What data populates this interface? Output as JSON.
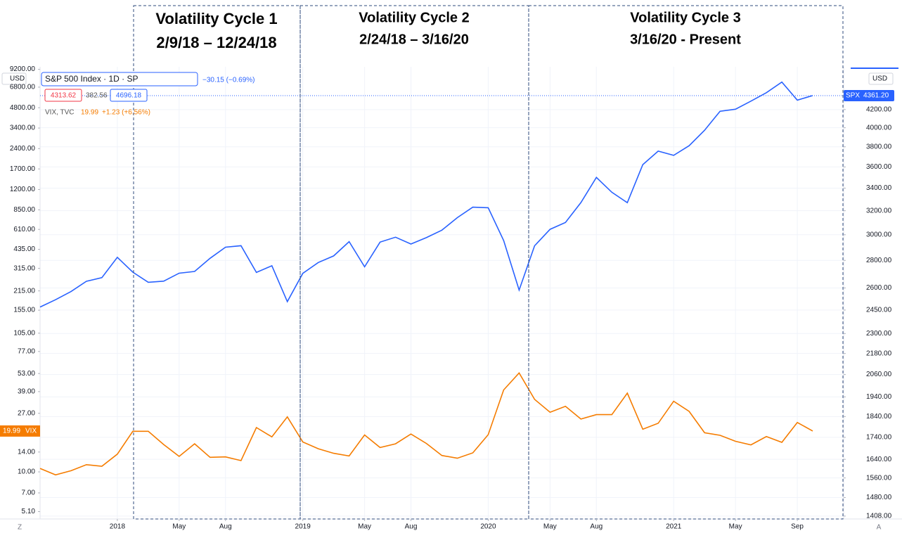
{
  "chart_data": {
    "type": "line",
    "annotations": [
      {
        "title": "Volatility Cycle 1",
        "dates": "2/9/18 – 12/24/18"
      },
      {
        "title": "Volatility Cycle 2",
        "dates": "2/24/18 – 3/16/20"
      },
      {
        "title": "Volatility Cycle 3",
        "dates": "3/16/20 - Present"
      }
    ],
    "currency": "USD",
    "legend": {
      "change": "−30.15 (−0.69%)",
      "low": "4313.62",
      "range": "382.56",
      "high": "4696.18",
      "vix_last": "19.99",
      "vix_change": "+1.23 (+6.56%)"
    },
    "scale_buttons": [
      "Z",
      "A"
    ],
    "log_scale": true,
    "grid": true,
    "x": [
      "2017-08",
      "2017-09",
      "2017-10",
      "2017-11",
      "2017-12",
      "2018-01",
      "2018-02",
      "2018-03",
      "2018-04",
      "2018-05",
      "2018-06",
      "2018-07",
      "2018-08",
      "2018-09",
      "2018-10",
      "2018-11",
      "2018-12",
      "2019-01",
      "2019-02",
      "2019-03",
      "2019-04",
      "2019-05",
      "2019-06",
      "2019-07",
      "2019-08",
      "2019-09",
      "2019-10",
      "2019-11",
      "2019-12",
      "2020-01",
      "2020-02",
      "2020-03",
      "2020-04",
      "2020-05",
      "2020-06",
      "2020-07",
      "2020-08",
      "2020-09",
      "2020-10",
      "2020-11",
      "2020-12",
      "2021-01",
      "2021-02",
      "2021-03",
      "2021-04",
      "2021-05",
      "2021-06",
      "2021-07",
      "2021-08",
      "2021-09",
      "2021-10"
    ],
    "xlim": [
      "2017-08",
      "2021-12"
    ],
    "xticks": [
      {
        "value": "2018-01",
        "label": "2018"
      },
      {
        "value": "2018-05",
        "label": "May"
      },
      {
        "value": "2018-08",
        "label": "Aug"
      },
      {
        "value": "2019-01",
        "label": "2019"
      },
      {
        "value": "2019-05",
        "label": "May"
      },
      {
        "value": "2019-08",
        "label": "Aug"
      },
      {
        "value": "2020-01",
        "label": "2020"
      },
      {
        "value": "2020-05",
        "label": "May"
      },
      {
        "value": "2020-08",
        "label": "Aug"
      },
      {
        "value": "2021-01",
        "label": "2021"
      },
      {
        "value": "2021-05",
        "label": "May"
      },
      {
        "value": "2021-09",
        "label": "Sep"
      }
    ],
    "series": [
      {
        "name": "S&P 500 Index · 1D · SP",
        "short_name": "SPX",
        "price_tag": "4361.20",
        "color": "#2962ff",
        "axis": "y2",
        "values": [
          2470,
          2519,
          2575,
          2647,
          2673,
          2823,
          2713,
          2640,
          2648,
          2705,
          2718,
          2816,
          2901,
          2913,
          2711,
          2760,
          2506,
          2704,
          2784,
          2834,
          2945,
          2752,
          2941,
          2980,
          2926,
          2977,
          3037,
          3141,
          3231,
          3226,
          2954,
          2585,
          2912,
          3044,
          3100,
          3271,
          3500,
          3363,
          3270,
          3622,
          3756,
          3714,
          3811,
          3973,
          4181,
          4204,
          4297,
          4395,
          4523,
          4308,
          4361
        ]
      },
      {
        "name": "VIX, TVC",
        "short_name": "VIX",
        "price_tag": "19.99",
        "color": "#f57c00",
        "values": [
          10.6,
          9.5,
          10.2,
          11.3,
          11.0,
          13.5,
          19.9,
          19.9,
          15.9,
          13.0,
          16.1,
          12.8,
          12.9,
          12.1,
          21.2,
          18.1,
          25.4,
          16.6,
          14.8,
          13.7,
          13.1,
          18.7,
          15.1,
          16.1,
          19.0,
          16.2,
          13.2,
          12.6,
          13.8,
          18.8,
          40.1,
          53.5,
          34.2,
          27.5,
          30.4,
          24.5,
          26.4,
          26.4,
          38.0,
          20.6,
          22.8,
          33.1,
          27.9,
          19.4,
          18.6,
          16.8,
          15.8,
          18.2,
          16.5,
          23.1,
          19.99
        ]
      }
    ],
    "ylim": [
      4.5,
      9600
    ],
    "yticks": [
      {
        "value": 9200,
        "label": "9200.00"
      },
      {
        "value": 6800,
        "label": "6800.00"
      },
      {
        "value": 4800,
        "label": "4800.00"
      },
      {
        "value": 3400,
        "label": "3400.00"
      },
      {
        "value": 2400,
        "label": "2400.00"
      },
      {
        "value": 1700,
        "label": "1700.00"
      },
      {
        "value": 1200,
        "label": "1200.00"
      },
      {
        "value": 850,
        "label": "850.00"
      },
      {
        "value": 610,
        "label": "610.00"
      },
      {
        "value": 435,
        "label": "435.00"
      },
      {
        "value": 315,
        "label": "315.00"
      },
      {
        "value": 215,
        "label": "215.00"
      },
      {
        "value": 155,
        "label": "155.00"
      },
      {
        "value": 105,
        "label": "105.00"
      },
      {
        "value": 77,
        "label": "77.00"
      },
      {
        "value": 53,
        "label": "53.00"
      },
      {
        "value": 39,
        "label": "39.00"
      },
      {
        "value": 27,
        "label": "27.00"
      },
      {
        "value": 14,
        "label": "14.00"
      },
      {
        "value": 10,
        "label": "10.00"
      },
      {
        "value": 7,
        "label": "7.00"
      },
      {
        "value": 5.1,
        "label": "5.10"
      }
    ],
    "y2lim": [
      1397,
      4712
    ],
    "y2ticks": [
      {
        "value": 4200,
        "label": "4200.00"
      },
      {
        "value": 4000,
        "label": "4000.00"
      },
      {
        "value": 3800,
        "label": "3800.00"
      },
      {
        "value": 3600,
        "label": "3600.00"
      },
      {
        "value": 3400,
        "label": "3400.00"
      },
      {
        "value": 3200,
        "label": "3200.00"
      },
      {
        "value": 3000,
        "label": "3000.00"
      },
      {
        "value": 2800,
        "label": "2800.00"
      },
      {
        "value": 2600,
        "label": "2600.00"
      },
      {
        "value": 2450,
        "label": "2450.00"
      },
      {
        "value": 2300,
        "label": "2300.00"
      },
      {
        "value": 2180,
        "label": "2180.00"
      },
      {
        "value": 2060,
        "label": "2060.00"
      },
      {
        "value": 1940,
        "label": "1940.00"
      },
      {
        "value": 1840,
        "label": "1840.00"
      },
      {
        "value": 1740,
        "label": "1740.00"
      },
      {
        "value": 1640,
        "label": "1640.00"
      },
      {
        "value": 1560,
        "label": "1560.00"
      },
      {
        "value": 1480,
        "label": "1480.00"
      },
      {
        "value": 1408,
        "label": "1408.00"
      }
    ]
  }
}
